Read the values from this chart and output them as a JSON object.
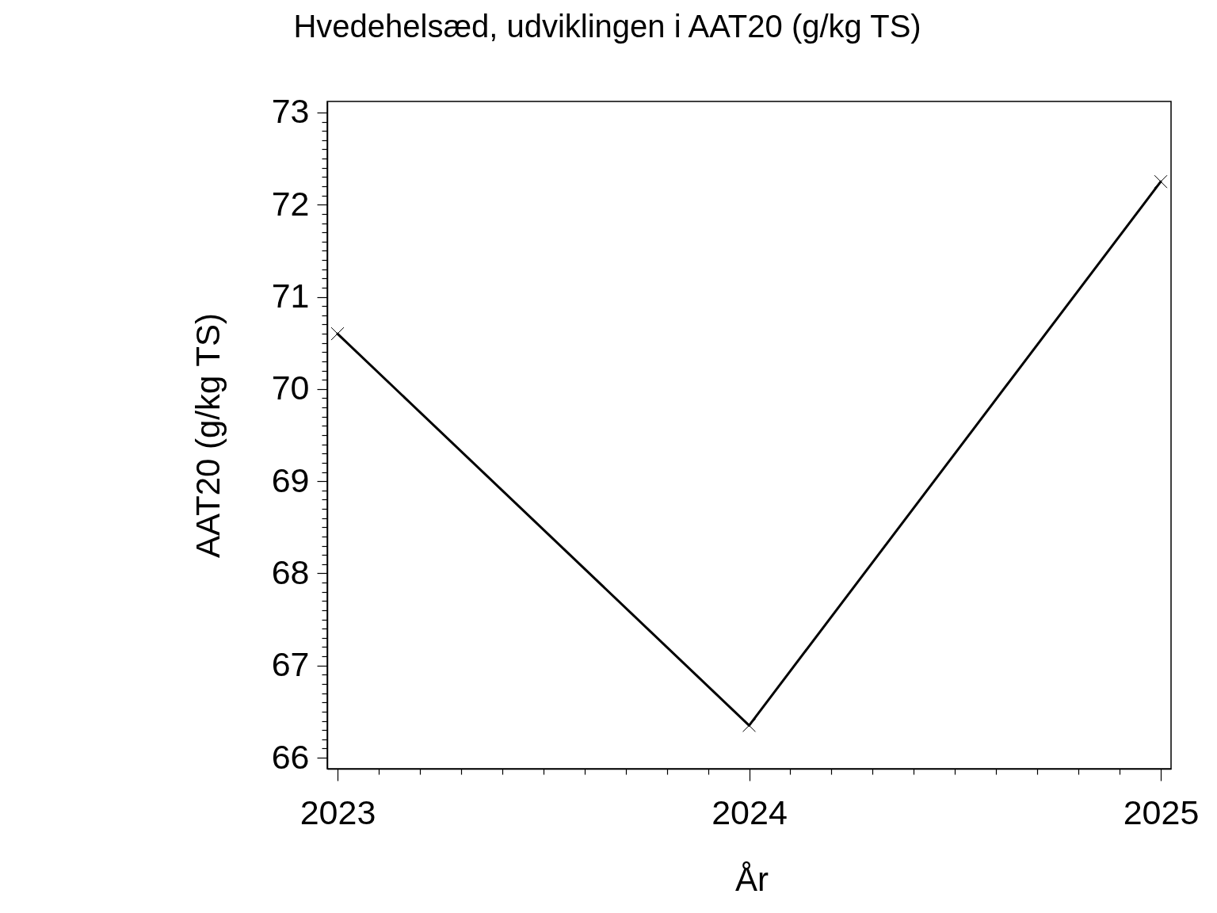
{
  "chart_data": {
    "type": "line",
    "title": "Hvedehelsæd, udviklingen i AAT20 (g/kg TS)",
    "xlabel": "År",
    "ylabel": "AAT20 (g/kg TS)",
    "x": [
      2023,
      2024,
      2025
    ],
    "values": [
      70.6,
      66.35,
      72.25
    ],
    "color": "#000000",
    "marker": "cross",
    "line_style": "solid",
    "xlim": [
      2022.975,
      2025.025
    ],
    "ylim": [
      65.88,
      73.12
    ],
    "xticks": [
      2023,
      {
        "value": 2023.1,
        "label": null
      },
      {
        "value": 2023.2,
        "label": null
      },
      {
        "value": 2023.3,
        "label": null
      },
      {
        "value": 2023.4,
        "label": null
      },
      {
        "value": 2023.5,
        "label": null
      },
      {
        "value": 2023.6,
        "label": null
      },
      {
        "value": 2023.7,
        "label": null
      },
      {
        "value": 2023.8,
        "label": null
      },
      {
        "value": 2023.9,
        "label": null
      },
      2024,
      {
        "value": 2024.1,
        "label": null
      },
      {
        "value": 2024.2,
        "label": null
      },
      {
        "value": 2024.3,
        "label": null
      },
      {
        "value": 2024.4,
        "label": null
      },
      {
        "value": 2024.5,
        "label": null
      },
      {
        "value": 2024.6,
        "label": null
      },
      {
        "value": 2024.7,
        "label": null
      },
      {
        "value": 2024.8,
        "label": null
      },
      {
        "value": 2024.9,
        "label": null
      },
      2025
    ],
    "yticks": [
      66,
      {
        "value": 66.1,
        "label": null
      },
      {
        "value": 66.2,
        "label": null
      },
      {
        "value": 66.3,
        "label": null
      },
      {
        "value": 66.4,
        "label": null
      },
      {
        "value": 66.5,
        "label": null
      },
      {
        "value": 66.6,
        "label": null
      },
      {
        "value": 66.7,
        "label": null
      },
      {
        "value": 66.8,
        "label": null
      },
      {
        "value": 66.9,
        "label": null
      },
      67,
      {
        "value": 67.1,
        "label": null
      },
      {
        "value": 67.2,
        "label": null
      },
      {
        "value": 67.3,
        "label": null
      },
      {
        "value": 67.4,
        "label": null
      },
      {
        "value": 67.5,
        "label": null
      },
      {
        "value": 67.6,
        "label": null
      },
      {
        "value": 67.7,
        "label": null
      },
      {
        "value": 67.8,
        "label": null
      },
      {
        "value": 67.9,
        "label": null
      },
      68,
      {
        "value": 68.1,
        "label": null
      },
      {
        "value": 68.2,
        "label": null
      },
      {
        "value": 68.3,
        "label": null
      },
      {
        "value": 68.4,
        "label": null
      },
      {
        "value": 68.5,
        "label": null
      },
      {
        "value": 68.6,
        "label": null
      },
      {
        "value": 68.7,
        "label": null
      },
      {
        "value": 68.8,
        "label": null
      },
      {
        "value": 68.9,
        "label": null
      },
      69,
      {
        "value": 69.1,
        "label": null
      },
      {
        "value": 69.2,
        "label": null
      },
      {
        "value": 69.3,
        "label": null
      },
      {
        "value": 69.4,
        "label": null
      },
      {
        "value": 69.5,
        "label": null
      },
      {
        "value": 69.6,
        "label": null
      },
      {
        "value": 69.7,
        "label": null
      },
      {
        "value": 69.8,
        "label": null
      },
      {
        "value": 69.9,
        "label": null
      },
      70,
      {
        "value": 70.1,
        "label": null
      },
      {
        "value": 70.2,
        "label": null
      },
      {
        "value": 70.3,
        "label": null
      },
      {
        "value": 70.4,
        "label": null
      },
      {
        "value": 70.5,
        "label": null
      },
      {
        "value": 70.6,
        "label": null
      },
      {
        "value": 70.7,
        "label": null
      },
      {
        "value": 70.8,
        "label": null
      },
      {
        "value": 70.9,
        "label": null
      },
      71,
      {
        "value": 71.1,
        "label": null
      },
      {
        "value": 71.2,
        "label": null
      },
      {
        "value": 71.3,
        "label": null
      },
      {
        "value": 71.4,
        "label": null
      },
      {
        "value": 71.5,
        "label": null
      },
      {
        "value": 71.6,
        "label": null
      },
      {
        "value": 71.7,
        "label": null
      },
      {
        "value": 71.8,
        "label": null
      },
      {
        "value": 71.9,
        "label": null
      },
      72,
      {
        "value": 72.1,
        "label": null
      },
      {
        "value": 72.2,
        "label": null
      },
      {
        "value": 72.3,
        "label": null
      },
      {
        "value": 72.4,
        "label": null
      },
      {
        "value": 72.5,
        "label": null
      },
      {
        "value": 72.6,
        "label": null
      },
      {
        "value": 72.7,
        "label": null
      },
      {
        "value": 72.8,
        "label": null
      },
      {
        "value": 72.9,
        "label": null
      },
      73
    ]
  }
}
